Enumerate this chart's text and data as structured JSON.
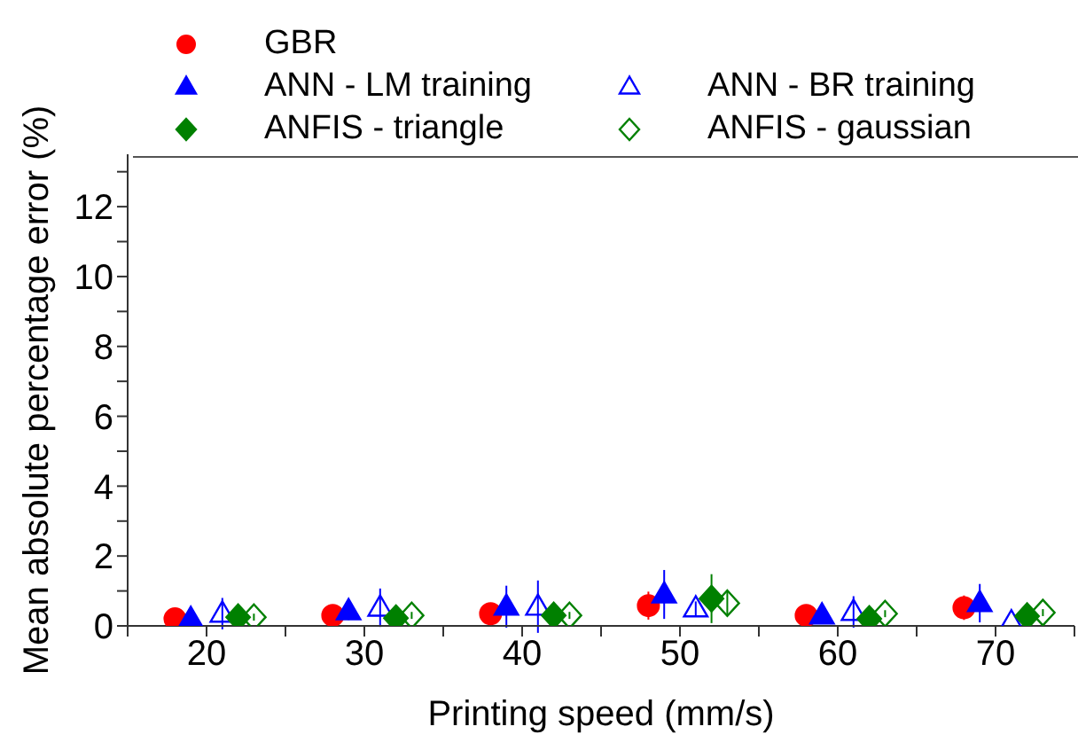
{
  "chart_data": {
    "type": "scatter",
    "xlabel": "Printing speed (mm/s)",
    "ylabel": "Mean absolute percentage error (%)",
    "xlim": [
      15,
      75
    ],
    "xticks": [
      {
        "value": 15,
        "label": null
      },
      20,
      {
        "value": 25,
        "label": null
      },
      30,
      {
        "value": 35,
        "label": null
      },
      40,
      {
        "value": 45,
        "label": null
      },
      50,
      {
        "value": 55,
        "label": null
      },
      60,
      {
        "value": 65,
        "label": null
      },
      70,
      {
        "value": 75,
        "label": null
      }
    ],
    "ylim": [
      0,
      13.5
    ],
    "yticks": [
      0,
      {
        "value": 1,
        "label": null
      },
      2,
      {
        "value": 3,
        "label": null
      },
      4,
      {
        "value": 5,
        "label": null
      },
      6,
      {
        "value": 7,
        "label": null
      },
      8,
      {
        "value": 9,
        "label": null
      },
      10,
      {
        "value": 11,
        "label": null
      },
      12,
      {
        "value": 13,
        "label": null
      }
    ],
    "grid": false,
    "legend": "top",
    "series": [
      {
        "name": "GBR",
        "color": "#ff0000",
        "marker": "circle",
        "x": [
          18,
          28,
          38,
          48,
          58,
          68
        ],
        "values": [
          0.2,
          0.3,
          0.35,
          0.58,
          0.3,
          0.52
        ],
        "errors": [
          0.1,
          0.2,
          0.3,
          0.4,
          0.3,
          0.35
        ]
      },
      {
        "name": "ANN - LM training",
        "color": "#0000ff",
        "marker": "triangle",
        "x": [
          19,
          29,
          39,
          49,
          59,
          69
        ],
        "values": [
          0.2,
          0.42,
          0.55,
          0.9,
          0.3,
          0.65
        ],
        "errors": [
          0.1,
          0.25,
          0.6,
          0.7,
          0.1,
          0.55
        ]
      },
      {
        "name": "ANN - BR training",
        "color": "#0000ff",
        "marker": "triangle",
        "x": [
          21,
          31,
          41,
          51,
          61,
          71
        ],
        "values": [
          0.35,
          0.52,
          0.55,
          0.5,
          0.4,
          0.1
        ],
        "errors": [
          0.45,
          0.55,
          0.75,
          0.2,
          0.45,
          null
        ]
      },
      {
        "name": "ANFIS - triangle",
        "color": "#008000",
        "marker": "diamond",
        "x": [
          22,
          32,
          42,
          52,
          62,
          72
        ],
        "values": [
          0.25,
          0.22,
          0.3,
          0.78,
          0.2,
          0.28
        ],
        "errors": [
          0.1,
          0.1,
          0.1,
          0.7,
          0.1,
          0.1
        ]
      },
      {
        "name": "ANFIS - gaussian",
        "color": "#008000",
        "marker": "diamond",
        "x": [
          23,
          33,
          43,
          53,
          63,
          73
        ],
        "values": [
          0.25,
          0.3,
          0.3,
          0.65,
          0.35,
          0.38
        ],
        "errors": [
          0.1,
          0.1,
          0.1,
          0.35,
          0.1,
          0.1
        ]
      }
    ]
  }
}
